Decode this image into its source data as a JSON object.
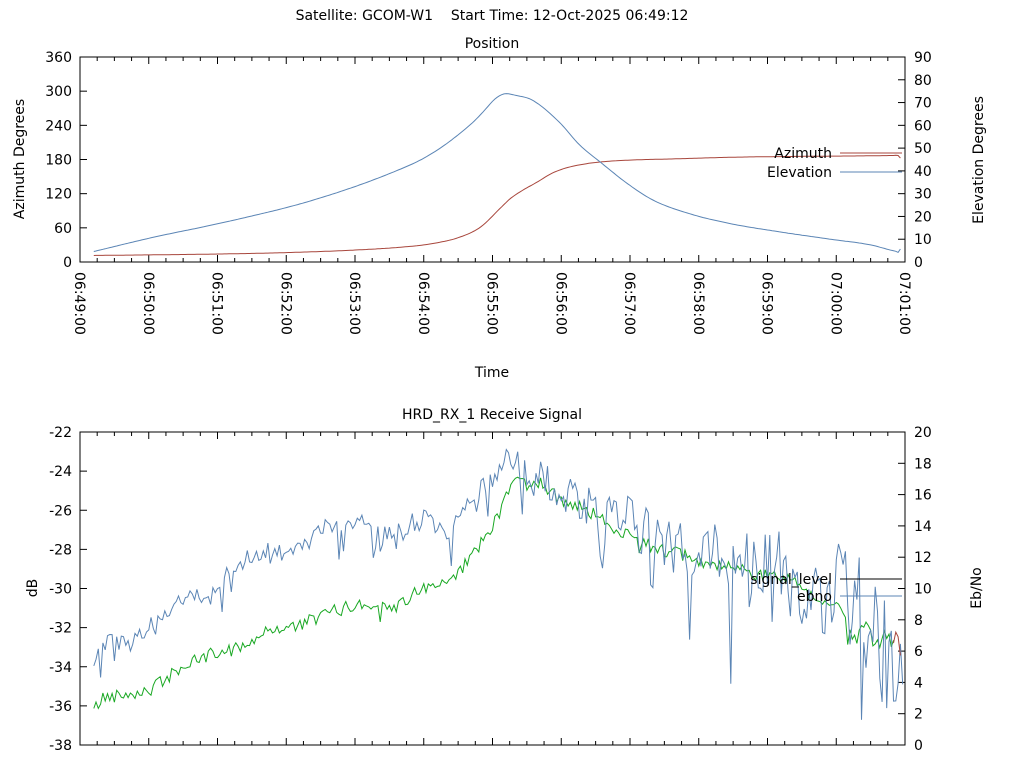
{
  "page_title": "Satellite: GCOM-W1    Start Time: 12-Oct-2025 06:49:12",
  "chart_data": [
    {
      "type": "line",
      "title": "Position",
      "xlabel": "Time",
      "x_start_seconds": 0,
      "x_end_seconds": 720,
      "x_minor_tick_seconds": 15,
      "x_major_tick_seconds": 60,
      "x_tick_labels": [
        "06:49:00",
        "06:50:00",
        "06:51:00",
        "06:52:00",
        "06:53:00",
        "06:54:00",
        "06:55:00",
        "06:56:00",
        "06:57:00",
        "06:58:00",
        "06:59:00",
        "07:00:00",
        "07:01:00"
      ],
      "x_tick_labels_visible": true,
      "grid": false,
      "legend_position": "right-middle",
      "y_left": {
        "label": "Azimuth Degrees",
        "min": 0,
        "max": 360,
        "step": 60
      },
      "y_right": {
        "label": "Elevation Degrees",
        "min": 0,
        "max": 90,
        "step": 10
      },
      "legend": [
        {
          "label": "Azimuth",
          "color": "#a8463c"
        },
        {
          "label": "Elevation",
          "color": "#5b85b5"
        }
      ],
      "series": [
        {
          "name": "azimuth",
          "axis": "left",
          "color": "#a8463c",
          "smooth": true,
          "noise_amp": 0,
          "t": [
            12,
            60,
            120,
            180,
            240,
            280,
            305,
            332,
            350,
            367,
            376,
            402,
            412,
            424,
            440,
            456,
            480,
            517,
            570,
            630,
            680,
            710,
            714,
            716
          ],
          "v": [
            11.5,
            12.5,
            14,
            16.5,
            21,
            26,
            31.5,
            44,
            62,
            95,
            112,
            144,
            156,
            165,
            172,
            176,
            179,
            181,
            184,
            185.5,
            186.3,
            187,
            187,
            182.5
          ]
        },
        {
          "name": "elevation",
          "axis": "right",
          "color": "#5b85b5",
          "smooth": true,
          "noise_amp": 0,
          "t": [
            12,
            61,
            131,
            201,
            271,
            305,
            340,
            352,
            362,
            370,
            380,
            395,
            419,
            436,
            454,
            477,
            500,
            530,
            565,
            611,
            655,
            690,
            712,
            715,
            717
          ],
          "v": [
            4.6,
            10.5,
            18,
            26.8,
            39,
            47,
            60,
            66,
            71.5,
            73.8,
            73.2,
            71,
            61,
            51.4,
            43.9,
            34.7,
            27.2,
            21.5,
            17.1,
            13.2,
            10,
            7.5,
            4.7,
            4.5,
            7.3
          ]
        }
      ]
    },
    {
      "type": "line",
      "title": "HRD_RX_1 Receive Signal",
      "xlabel": "",
      "x_start_seconds": 0,
      "x_end_seconds": 720,
      "x_minor_tick_seconds": 15,
      "x_major_tick_seconds": 60,
      "x_tick_labels": [],
      "x_tick_labels_visible": false,
      "grid": false,
      "legend_position": "right-middle",
      "noise_seed": 42,
      "y_left": {
        "label": "dB",
        "min": -38,
        "max": -22,
        "step": 2
      },
      "y_right": {
        "label": "Eb/No",
        "min": 0,
        "max": 20,
        "step": 2
      },
      "legend": [
        {
          "label": "signal_level",
          "color": "#000000"
        },
        {
          "label": "ebno",
          "color": "#5b85b5"
        }
      ],
      "series": [
        {
          "name": "signal_level",
          "axis": "left",
          "color": "#19a823",
          "smooth": false,
          "noise_amp": 0.35,
          "spike_prob": 0.015,
          "spike_scale": 2,
          "t": [
            12,
            20,
            35,
            61,
            87,
            113,
            140,
            166,
            192,
            218,
            244,
            271,
            297,
            323,
            340,
            358,
            371,
            380,
            388,
            401,
            419,
            436,
            454,
            471,
            498,
            524,
            550,
            576,
            602,
            629,
            646,
            664,
            677,
            686,
            694,
            703,
            710
          ],
          "v": [
            -36.2,
            -35.6,
            -35.4,
            -35.2,
            -34.1,
            -33.4,
            -33.0,
            -32.1,
            -31.9,
            -31.2,
            -30.8,
            -31.1,
            -30.1,
            -29.8,
            -28.5,
            -27.0,
            -25.5,
            -24.2,
            -24.7,
            -24.5,
            -25.5,
            -25.7,
            -26.5,
            -27.0,
            -27.8,
            -28.3,
            -28.8,
            -29.1,
            -29.3,
            -29.8,
            -30.6,
            -31.1,
            -32.6,
            -31.6,
            -33.1,
            -32.4,
            -32.9
          ]
        },
        {
          "name": "ebno",
          "axis": "right",
          "color": "#5b85b5",
          "smooth": false,
          "spike_prob": 0.07,
          "spike_scale": 2.2,
          "noise_amp": [
            0.5,
            0.5,
            0.5,
            0.5,
            0.5,
            0.5,
            0.5,
            0.6,
            0.6,
            0.6,
            0.6,
            0.6,
            0.6,
            0.6,
            0.6,
            0.7,
            0.7,
            0.7,
            0.9,
            0.9,
            0.8,
            0.8,
            0.9,
            1.2,
            1.4,
            1.5,
            1.5,
            1.5,
            1.6,
            1.8,
            2.0,
            2.2,
            2.2,
            2.4,
            2.4,
            2.6,
            2.8,
            3.0,
            3.2,
            3.4,
            4.0,
            4.5,
            3.5,
            2.5
          ],
          "t": [
            12,
            26,
            44,
            61,
            79,
            96,
            113,
            131,
            148,
            166,
            183,
            201,
            218,
            236,
            253,
            271,
            288,
            305,
            323,
            340,
            358,
            371,
            380,
            393,
            410,
            428,
            445,
            462,
            480,
            497,
            515,
            532,
            550,
            567,
            585,
            602,
            620,
            637,
            655,
            672,
            690,
            703,
            711,
            718
          ],
          "v": [
            5.4,
            6.7,
            6.4,
            7.7,
            8.6,
            9.9,
            9.3,
            11.2,
            12.1,
            12.6,
            12.1,
            13.1,
            14.1,
            13.7,
            14.4,
            13.2,
            14.1,
            14.4,
            13.7,
            15.0,
            16.9,
            18.2,
            18.3,
            16.9,
            17.0,
            15.7,
            15.0,
            15.3,
            14.4,
            13.4,
            13.1,
            12.8,
            12.5,
            11.8,
            12.1,
            11.5,
            10.9,
            10.5,
            9.9,
            9.3,
            8.0,
            6.1,
            2.9,
            4.8
          ]
        },
        {
          "name": "signal_level_end",
          "axis": "left",
          "color": "#a8463c",
          "smooth": false,
          "noise_amp": 0.15,
          "t": [
            710,
            713,
            716
          ],
          "v": [
            -32.9,
            -32.0,
            -33.4
          ]
        }
      ]
    }
  ]
}
